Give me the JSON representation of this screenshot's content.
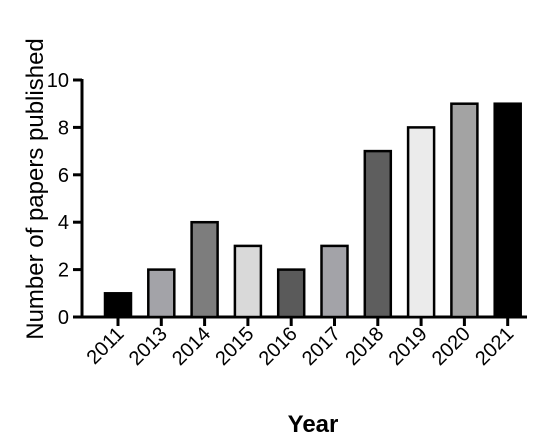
{
  "chart_data": {
    "type": "bar",
    "title": "",
    "xlabel": "Year",
    "ylabel": "Number of papers published",
    "categories": [
      "2011",
      "2013",
      "2014",
      "2015",
      "2016",
      "2017",
      "2018",
      "2019",
      "2020",
      "2021"
    ],
    "values": [
      1,
      2,
      4,
      3,
      2,
      3,
      7,
      8,
      9,
      9
    ],
    "colors": [
      "#000000",
      "#a3a3a8",
      "#7d7d7d",
      "#d9d9d9",
      "#5a5a5a",
      "#a3a3a8",
      "#5e5e5e",
      "#ebebeb",
      "#a3a3a3",
      "#000000"
    ],
    "ylim": [
      0,
      10
    ],
    "yticks": [
      0,
      2,
      4,
      6,
      8,
      10
    ],
    "grid": false,
    "legend": "none"
  }
}
